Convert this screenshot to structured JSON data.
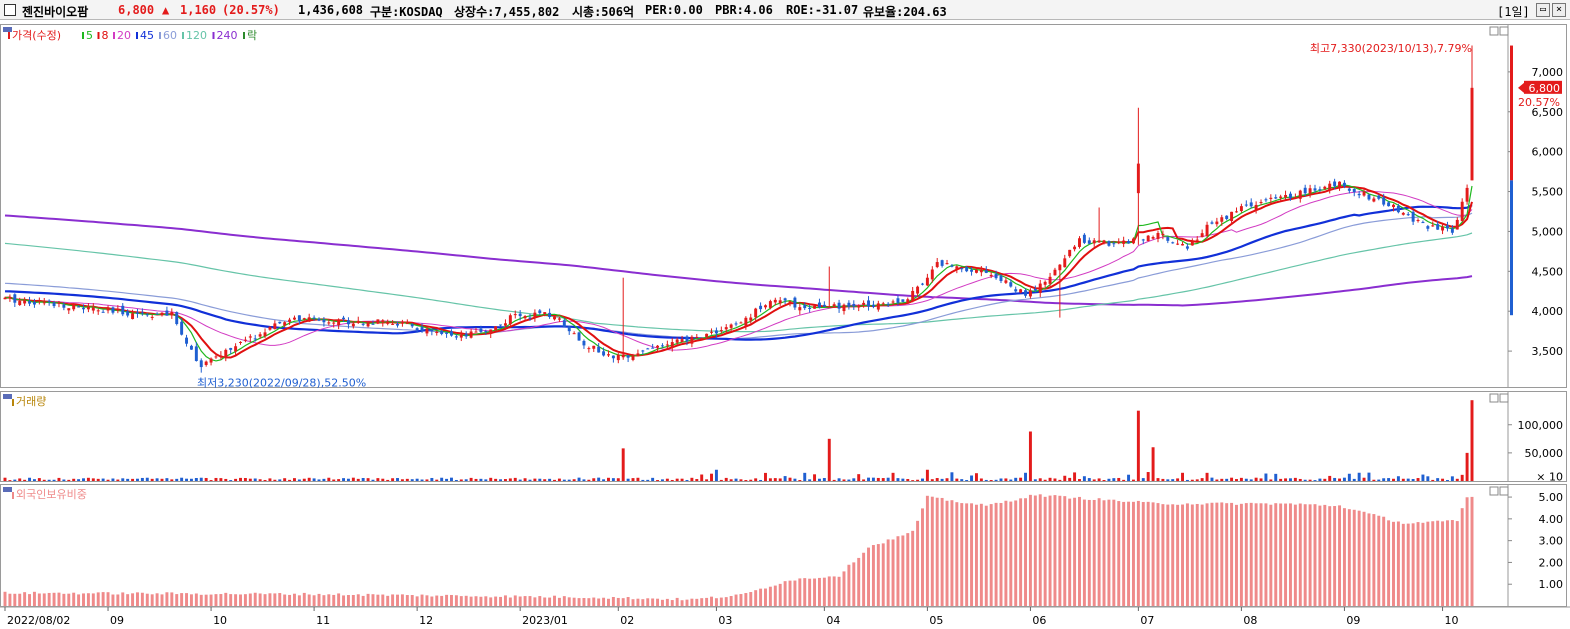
{
  "header": {
    "name": "젠진바이오팜",
    "price": "6,800",
    "change_arrow": "▲",
    "change": "1,160",
    "change_pct": "(20.57%)",
    "volume": "1,436,608",
    "market": "구분:KOSDAQ",
    "shares": "상장수:7,455,802",
    "mktcap": "시총:506억",
    "per": "PER:0.00",
    "pbr": "PBR:4.06",
    "roe": "ROE:-31.07",
    "float": "유보율:204.63",
    "period": "[1일]"
  },
  "colors": {
    "up": "#e31b1b",
    "down": "#1f5fd1",
    "ma5": "#1fb81f",
    "ma8": "#e01010",
    "ma20": "#d23cc3",
    "ma45": "#1130d8",
    "ma60": "#8a9cd8",
    "ma120": "#66c4a8",
    "ma240": "#8a2ed0",
    "foreign": "#ef8a8a"
  },
  "chart_data": [
    {
      "type": "candlestick",
      "title": "가격(수정)",
      "legend": [
        {
          "label": "가격(수정)",
          "color": "#e31b1b"
        },
        {
          "label": "5",
          "color": "#1fb81f"
        },
        {
          "label": "8",
          "color": "#e01010"
        },
        {
          "label": "20",
          "color": "#d23cc3"
        },
        {
          "label": "45",
          "color": "#1130d8"
        },
        {
          "label": "60",
          "color": "#8a9cd8"
        },
        {
          "label": "120",
          "color": "#66c4a8"
        },
        {
          "label": "240",
          "color": "#8a2ed0"
        },
        {
          "label": "락",
          "color": "#2c8a2c"
        }
      ],
      "x_ticks": [
        "2022/08/02",
        "09",
        "10",
        "11",
        "12",
        "2023/01",
        "02",
        "03",
        "04",
        "05",
        "06",
        "07",
        "08",
        "09",
        "10"
      ],
      "y_ticks": [
        "3,500",
        "4,000",
        "4,500",
        "5,000",
        "5,500",
        "6,000",
        "6,500",
        "7,000"
      ],
      "ylim": [
        3050,
        7600
      ],
      "current_price": "6,800",
      "current_pct": "20.57%",
      "annotations": {
        "high": "최고7,330(2023/10/13),7.79%",
        "low": "최저3,230(2022/09/28),52.50%"
      },
      "key_points": [
        {
          "date": "2022/08/02",
          "close": 4150
        },
        {
          "date": "2022/09/28",
          "low": 3230
        },
        {
          "date": "2023/01",
          "close": 3600
        },
        {
          "date": "2023/03",
          "close": 4100
        },
        {
          "date": "2023/05",
          "close": 4500
        },
        {
          "date": "2023/07",
          "high": 6550
        },
        {
          "date": "2023/08",
          "close": 5600
        },
        {
          "date": "2023/10/13",
          "high": 7330,
          "close": 6800
        }
      ],
      "moving_averages_end": {
        "5": 5460,
        "8": 5480,
        "20": 5300,
        "45": 5330,
        "60": 5230,
        "120": 4980,
        "240": 4440
      }
    },
    {
      "type": "bar",
      "title": "거래량",
      "y_ticks": [
        "100,000",
        "50,000"
      ],
      "y_unit": "× 10",
      "spikes": [
        {
          "date": "2022/08/02",
          "value": 4000
        },
        {
          "date": "2023/01",
          "value": 58000
        },
        {
          "date": "2023/02",
          "value": 20000
        },
        {
          "date": "2023/03",
          "value": 12000
        },
        {
          "date": "2023/04",
          "value": 75000
        },
        {
          "date": "2023/05",
          "value": 88000
        },
        {
          "date": "2023/07",
          "value": 125000
        },
        {
          "date": "2023/10/13",
          "value": 143660
        }
      ]
    },
    {
      "type": "bar",
      "title": "외국인보유비중",
      "y_ticks": [
        "1.00",
        "2.00",
        "3.00",
        "4.00",
        "5.00"
      ],
      "ylim": [
        0,
        5.6
      ],
      "series_points": [
        {
          "date": "2022/08/02",
          "value": 0.6
        },
        {
          "date": "2023/02",
          "value": 0.3
        },
        {
          "date": "2023/04",
          "value": 1.4
        },
        {
          "date": "2023/04/20",
          "value": 2.7
        },
        {
          "date": "2023/05",
          "value": 5.0
        },
        {
          "date": "2023/06",
          "value": 5.1
        },
        {
          "date": "2023/07",
          "value": 4.6
        },
        {
          "date": "2023/08",
          "value": 4.7
        },
        {
          "date": "2023/09",
          "value": 3.8
        },
        {
          "date": "2023/10/13",
          "value": 5.0
        }
      ]
    }
  ]
}
